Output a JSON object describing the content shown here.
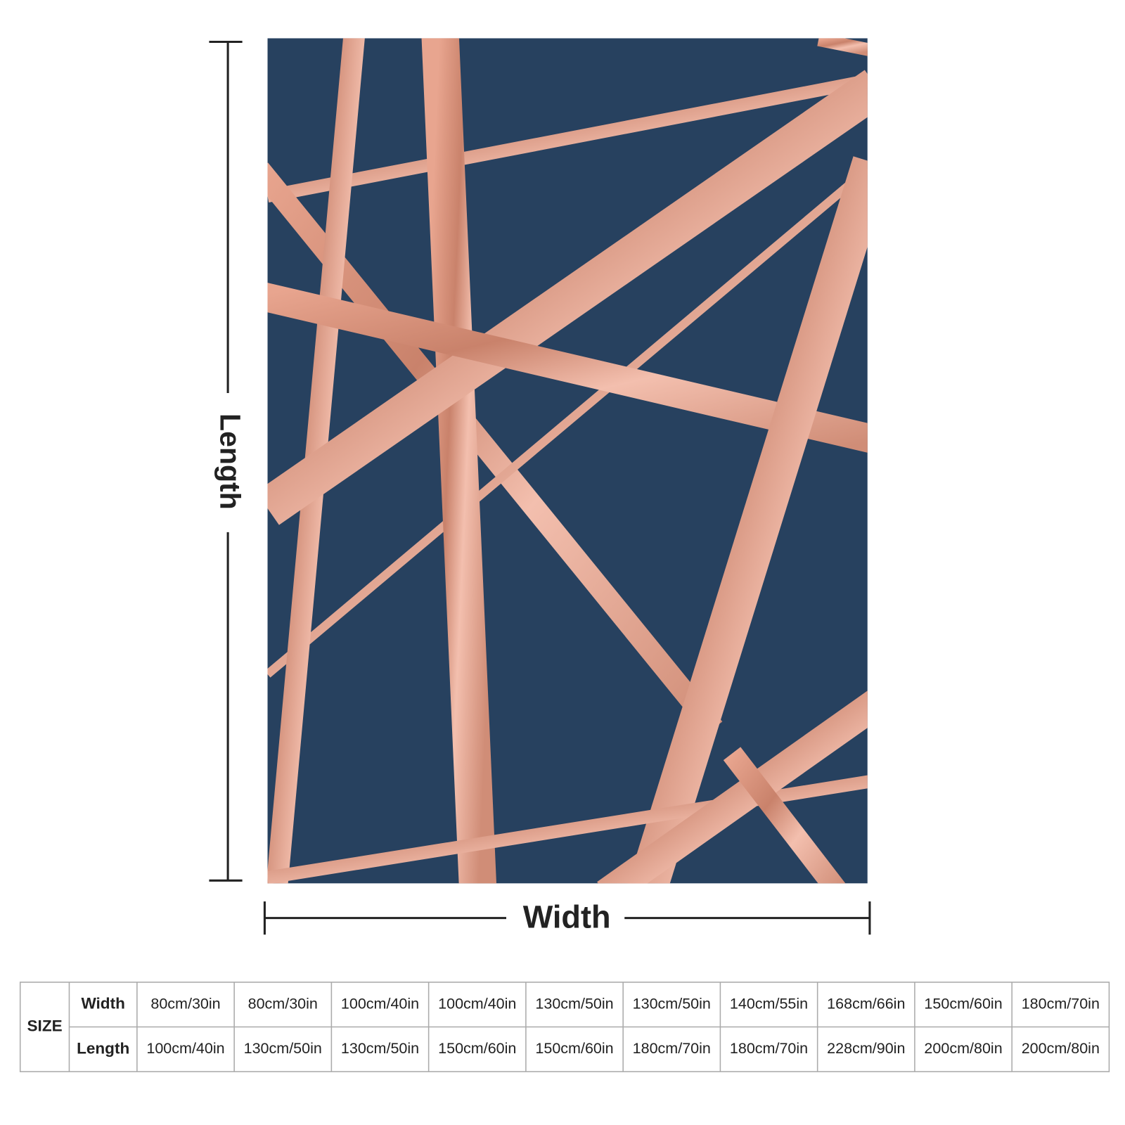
{
  "dimensions": {
    "length": "Length",
    "width": "Width"
  },
  "table": {
    "header": "SIZE",
    "rows": [
      {
        "label": "Width",
        "values": [
          "80cm/30in",
          "80cm/30in",
          "100cm/40in",
          "100cm/40in",
          "130cm/50in",
          "130cm/50in",
          "140cm/55in",
          "168cm/66in",
          "150cm/60in",
          "180cm/70in"
        ]
      },
      {
        "label": "Length",
        "values": [
          "100cm/40in",
          "130cm/50in",
          "130cm/50in",
          "150cm/60in",
          "150cm/60in",
          "180cm/70in",
          "180cm/70in",
          "228cm/90in",
          "200cm/80in",
          "200cm/80in"
        ]
      }
    ]
  }
}
